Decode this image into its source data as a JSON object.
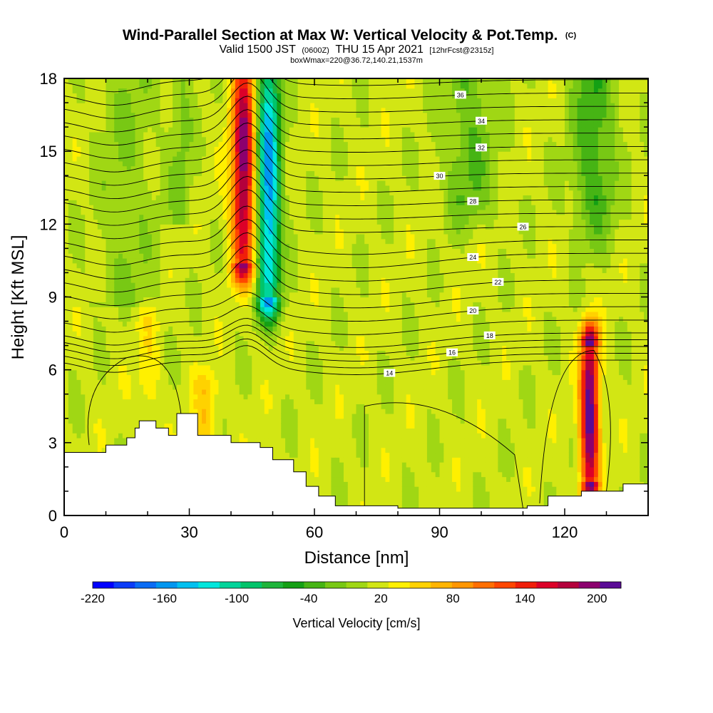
{
  "chart_data": {
    "type": "heatmap",
    "title": {
      "main": "Wind-Parallel Section at Max W: Vertical Velocity & Pot.Temp.",
      "main_suffix": "(C)",
      "valid_prefix": "Valid 1500 JST",
      "valid_utc": "(0600Z)",
      "valid_date": "THU 15 Apr 2021",
      "forecast": "[12hrFcst@2315z]",
      "boxinfo": "boxWmax=220@36.72,140.21,1537m"
    },
    "xlabel": "Distance [nm]",
    "ylabel": "Height [Kft MSL]",
    "xlim": [
      0,
      140
    ],
    "ylim": [
      0,
      18
    ],
    "x_ticks": [
      {
        "value": 0,
        "label": "0"
      },
      {
        "value": 30,
        "label": "30"
      },
      {
        "value": 60,
        "label": "60"
      },
      {
        "value": 90,
        "label": "90"
      },
      {
        "value": 120,
        "label": "120"
      }
    ],
    "y_ticks": [
      {
        "value": 0,
        "label": "0"
      },
      {
        "value": 3,
        "label": "3"
      },
      {
        "value": 6,
        "label": "6"
      },
      {
        "value": 9,
        "label": "9"
      },
      {
        "value": 12,
        "label": "12"
      },
      {
        "value": 15,
        "label": "15"
      },
      {
        "value": 18,
        "label": "18"
      }
    ],
    "colorbar": {
      "label": "Vertical Velocity [cm/s]",
      "range": [
        -220,
        220
      ],
      "step": 20,
      "tick_labels": [
        {
          "value": -220,
          "label": "-220"
        },
        {
          "value": -160,
          "label": "-160"
        },
        {
          "value": -100,
          "label": "-100"
        },
        {
          "value": -40,
          "label": "-40"
        },
        {
          "value": 20,
          "label": "20"
        },
        {
          "value": 80,
          "label": "80"
        },
        {
          "value": 140,
          "label": "140"
        },
        {
          "value": 200,
          "label": "200"
        }
      ],
      "colors": [
        "#0000ff",
        "#0b3cf8",
        "#0a6cf5",
        "#0096f0",
        "#00c0f0",
        "#00e6dc",
        "#00d49a",
        "#00c46a",
        "#1eb43a",
        "#14a014",
        "#46b414",
        "#78c814",
        "#a0d714",
        "#d2e614",
        "#fff000",
        "#ffd200",
        "#ffb400",
        "#ff9600",
        "#ff6e00",
        "#ff4600",
        "#f01e0a",
        "#dc0028",
        "#b4003c",
        "#8c006e",
        "#5a0a96"
      ]
    },
    "theta_contour_labels": [
      "14",
      "16",
      "18",
      "20",
      "22",
      "24",
      "26",
      "28",
      "30",
      "32",
      "34",
      "36"
    ],
    "vertical_velocity_features": [
      {
        "name": "updraft",
        "x_nm": 43,
        "z_kft": [
          10.5,
          18
        ],
        "peak_cm_s": 200
      },
      {
        "name": "downdraft",
        "x_nm": 49,
        "z_kft": [
          9,
          18
        ],
        "peak_cm_s": -160
      },
      {
        "name": "updraft",
        "x_nm": 126,
        "z_kft": [
          1.5,
          7
        ],
        "peak_cm_s": 220
      },
      {
        "name": "weak-updraft",
        "x_nm": 34,
        "z_kft": [
          2.8,
          5
        ],
        "peak_cm_s": 60
      },
      {
        "name": "weak-updraft",
        "x_nm": 20,
        "z_kft": [
          3.5,
          7.5
        ],
        "peak_cm_s": 40
      }
    ],
    "terrain_kft": [
      {
        "x": 0,
        "z": 2.6
      },
      {
        "x": 10,
        "z": 2.9
      },
      {
        "x": 15,
        "z": 3.2
      },
      {
        "x": 17,
        "z": 3.6
      },
      {
        "x": 18,
        "z": 3.9
      },
      {
        "x": 22,
        "z": 3.6
      },
      {
        "x": 25,
        "z": 3.3
      },
      {
        "x": 27,
        "z": 4.2
      },
      {
        "x": 32,
        "z": 3.3
      },
      {
        "x": 40,
        "z": 3.0
      },
      {
        "x": 47,
        "z": 2.8
      },
      {
        "x": 50,
        "z": 2.3
      },
      {
        "x": 55,
        "z": 1.8
      },
      {
        "x": 58,
        "z": 1.2
      },
      {
        "x": 61,
        "z": 0.8
      },
      {
        "x": 65,
        "z": 0.4
      },
      {
        "x": 80,
        "z": 0.3
      },
      {
        "x": 100,
        "z": 0.3
      },
      {
        "x": 111,
        "z": 0.4
      },
      {
        "x": 116,
        "z": 0.8
      },
      {
        "x": 124,
        "z": 1.0
      },
      {
        "x": 130,
        "z": 1.0
      },
      {
        "x": 134,
        "z": 1.3
      },
      {
        "x": 140,
        "z": 1.3
      }
    ]
  }
}
